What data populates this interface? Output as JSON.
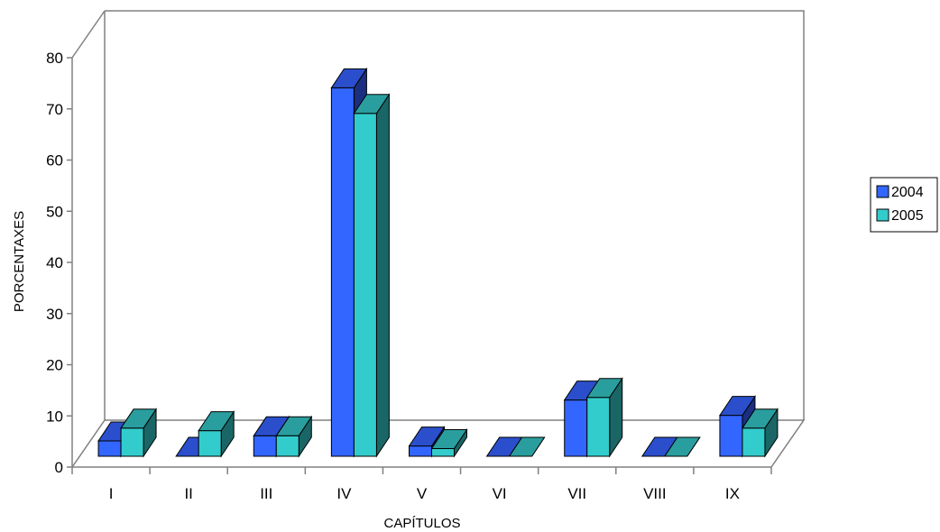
{
  "chart_data": {
    "type": "bar",
    "categories": [
      "I",
      "II",
      "III",
      "IV",
      "V",
      "VI",
      "VII",
      "VIII",
      "IX"
    ],
    "series": [
      {
        "name": "2004",
        "values": [
          3,
          0,
          4,
          72,
          2,
          0,
          11,
          0,
          8
        ]
      },
      {
        "name": "2005",
        "values": [
          5.5,
          5,
          4,
          67,
          1.5,
          0,
          11.5,
          0,
          5.5
        ]
      }
    ],
    "xlabel": "CAPÍTULOS",
    "ylabel": "PORCENTAXES",
    "ylim": [
      0,
      80
    ],
    "yticks": [
      0,
      10,
      20,
      30,
      40,
      50,
      60,
      70,
      80
    ],
    "legend_position": "right",
    "colors": {
      "2004": {
        "front": "#3366ff",
        "top": "#2b4fcc",
        "side": "#1a2f80"
      },
      "2005": {
        "front": "#33cccc",
        "top": "#2a9e9e",
        "side": "#1a6666"
      }
    },
    "style": "3d-clustered-column"
  }
}
